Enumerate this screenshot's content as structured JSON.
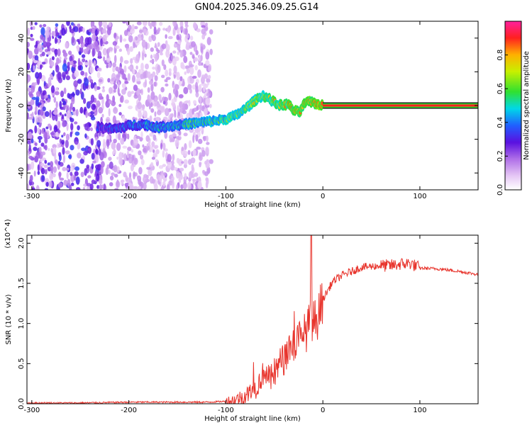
{
  "figure": {
    "title": "GN04.2025.346.09.25.G14"
  },
  "chart_data": [
    {
      "type": "heatmap",
      "title": "GN04.2025.346.09.25.G14",
      "xlabel": "Height of straight line (km)",
      "ylabel": "Frequency (Hz)",
      "xlim": [
        -305,
        160
      ],
      "ylim": [
        -50,
        50
      ],
      "xticks": [
        -300,
        -200,
        -100,
        0,
        100
      ],
      "xtick_labels": [
        "-300",
        "-200",
        "-100",
        "0",
        "100"
      ],
      "yticks": [
        -40,
        -20,
        0,
        20,
        40
      ],
      "ytick_labels": [
        "-40",
        "-20",
        "0",
        "20",
        "40"
      ],
      "colorbar": {
        "label": "Normalized spectral amplitude",
        "range": [
          0.0,
          1.0
        ],
        "ticks": [
          0.0,
          0.2,
          0.4,
          0.6,
          0.8
        ],
        "tick_labels": [
          "0.0",
          "0.2",
          "0.4",
          "0.6",
          "0.8"
        ],
        "colormap": "rainbow (white → purple → blue → cyan → green → yellow → red → magenta)"
      },
      "ridge": {
        "description": "Dominant frequency track versus height",
        "x": [
          -230,
          -215,
          -200,
          -185,
          -170,
          -155,
          -140,
          -125,
          -110,
          -100,
          -90,
          -80,
          -70,
          -62,
          -55,
          -48,
          -42,
          -36,
          -30,
          -24,
          -18,
          -12,
          -6,
          0,
          50,
          100,
          160
        ],
        "y": [
          -13,
          -14,
          -12,
          -11,
          -13,
          -12,
          -11,
          -10,
          -9,
          -8,
          -6,
          -2,
          3,
          6,
          4,
          1,
          0,
          1,
          -3,
          -4,
          2,
          2,
          1,
          0,
          0,
          0,
          0
        ]
      },
      "grid": false
    },
    {
      "type": "line",
      "xlabel": "Height of straight line (km)",
      "ylabel": "SNR (10 * v/v)",
      "y_multiplier": "(x10^4)",
      "xlim": [
        -305,
        160
      ],
      "ylim": [
        0.0,
        2.1
      ],
      "xticks": [
        -300,
        -200,
        -100,
        0,
        100
      ],
      "xtick_labels": [
        "-300",
        "-200",
        "-100",
        "0",
        "100"
      ],
      "yticks": [
        0.0,
        0.5,
        1.0,
        1.5,
        2.0
      ],
      "ytick_labels": [
        "0.0",
        "0.5",
        "1.0",
        "1.5",
        "2.0"
      ],
      "series": [
        {
          "color": "#e8342c",
          "x": [
            -305,
            -250,
            -200,
            -150,
            -120,
            -100,
            -90,
            -80,
            -70,
            -65,
            -60,
            -55,
            -50,
            -45,
            -40,
            -35,
            -30,
            -25,
            -20,
            -15,
            -12,
            -10,
            -5,
            0,
            10,
            20,
            30,
            40,
            50,
            60,
            70,
            80,
            90,
            95,
            100,
            120,
            140,
            160
          ],
          "y": [
            0.01,
            0.01,
            0.02,
            0.02,
            0.02,
            0.03,
            0.05,
            0.1,
            0.18,
            0.28,
            0.42,
            0.3,
            0.35,
            0.5,
            0.55,
            0.7,
            0.75,
            0.8,
            0.85,
            0.95,
            1.1,
            1.0,
            1.1,
            1.3,
            1.52,
            1.6,
            1.65,
            1.7,
            1.71,
            1.72,
            1.72,
            1.74,
            1.75,
            1.72,
            1.69,
            1.68,
            1.65,
            1.61
          ]
        }
      ],
      "grid": false
    }
  ]
}
